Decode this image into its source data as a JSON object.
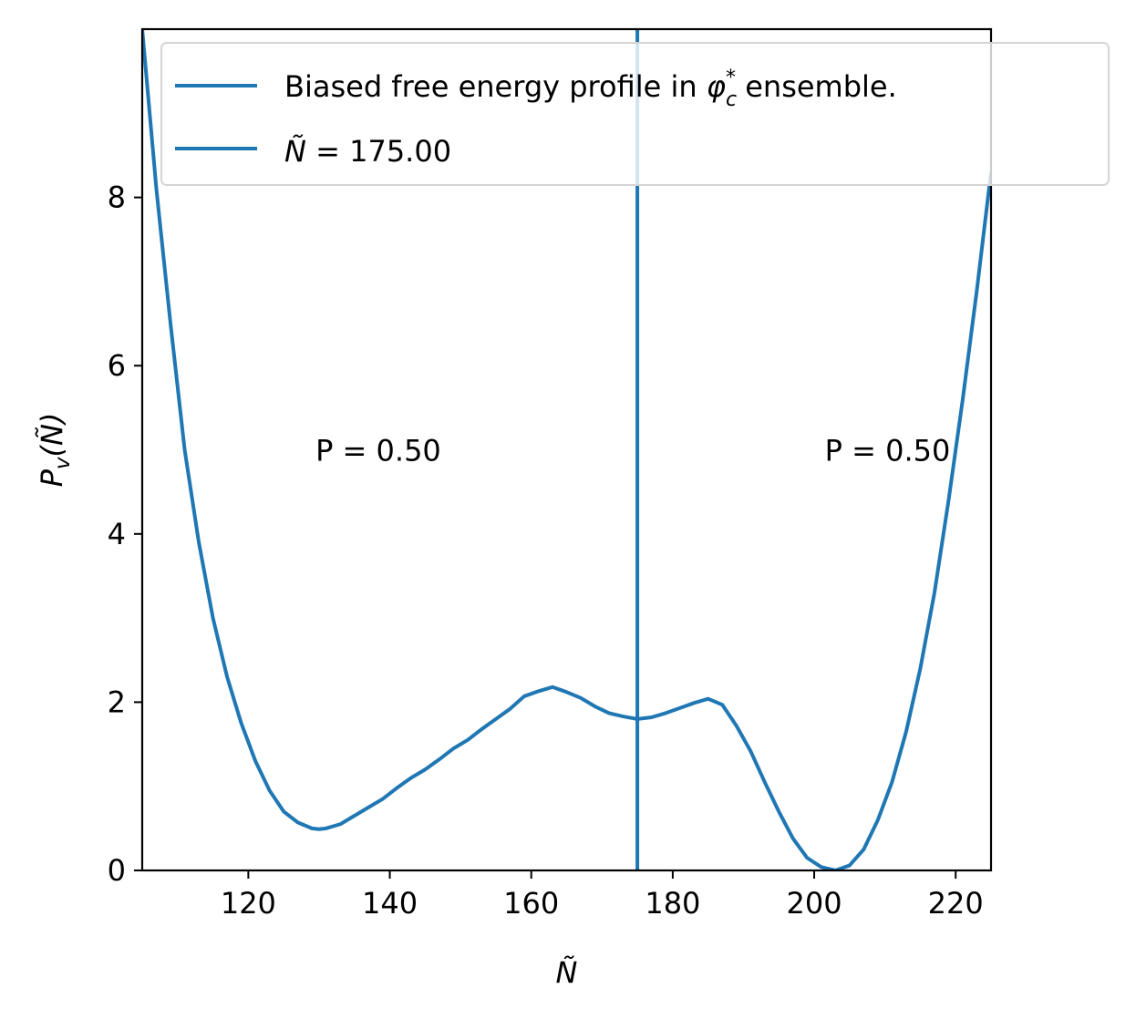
{
  "chart_data": {
    "type": "line",
    "xlabel": "Ñ",
    "ylabel": "P_v(Ñ)",
    "xlim": [
      105,
      225
    ],
    "ylim": [
      0,
      10
    ],
    "x_ticks": [
      120,
      140,
      160,
      180,
      200,
      220
    ],
    "y_ticks": [
      0,
      2,
      4,
      6,
      8
    ],
    "x_tick_labels": [
      "120",
      "140",
      "160",
      "180",
      "200",
      "220"
    ],
    "y_tick_labels": [
      "0",
      "2",
      "4",
      "6",
      "8"
    ],
    "line_color": "#1f77b4",
    "grid": false,
    "legend_position": "upper right",
    "legend": [
      {
        "text_before": "Biased free energy profile in ",
        "symbol": "φ",
        "sub": "c",
        "sup": "*",
        "text_after": " ensemble."
      },
      {
        "text": "Ñ = 175.00"
      }
    ],
    "series": [
      {
        "x": [
          105,
          107,
          109,
          111,
          113,
          115,
          117,
          119,
          121,
          123,
          125,
          127,
          129,
          130,
          131,
          133,
          135,
          137,
          139,
          141,
          143,
          145,
          147,
          149,
          151,
          153,
          155,
          157,
          159,
          161,
          163,
          165,
          167,
          169,
          171,
          173,
          175,
          177,
          179,
          181,
          183,
          185,
          187,
          189,
          191,
          193,
          195,
          197,
          199,
          201,
          203,
          205,
          207,
          209,
          211,
          213,
          215,
          217,
          219,
          221,
          223,
          225
        ],
        "y": [
          10.0,
          8.1,
          6.5,
          5.0,
          3.9,
          3.0,
          2.3,
          1.75,
          1.3,
          0.95,
          0.7,
          0.57,
          0.5,
          0.49,
          0.5,
          0.55,
          0.65,
          0.75,
          0.85,
          0.98,
          1.1,
          1.2,
          1.32,
          1.45,
          1.55,
          1.68,
          1.8,
          1.92,
          2.07,
          2.13,
          2.18,
          2.12,
          2.05,
          1.95,
          1.87,
          1.83,
          1.8,
          1.82,
          1.87,
          1.93,
          1.99,
          2.04,
          1.97,
          1.72,
          1.42,
          1.05,
          0.7,
          0.38,
          0.15,
          0.04,
          0.0,
          0.06,
          0.25,
          0.6,
          1.05,
          1.65,
          2.4,
          3.3,
          4.4,
          5.6,
          6.9,
          8.3
        ]
      }
    ],
    "vline": {
      "x": 175.0
    },
    "annotations": [
      {
        "text": "P = 0.50",
        "x": 129.5,
        "y": 5.0
      },
      {
        "text": "P = 0.50",
        "x": 201.5,
        "y": 5.0
      }
    ]
  }
}
